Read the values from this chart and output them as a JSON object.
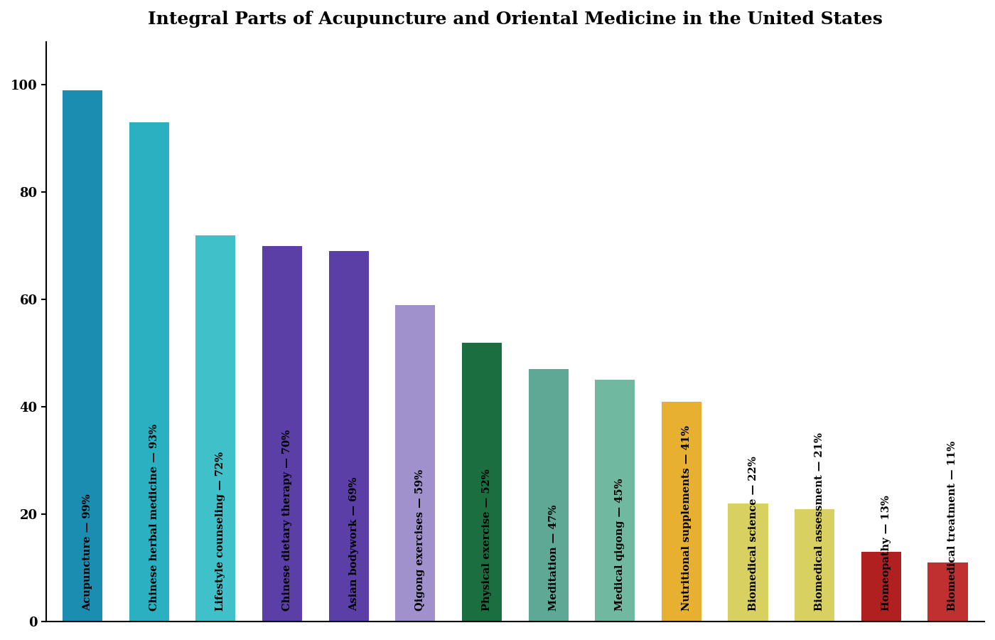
{
  "title": "Integral Parts of Acupuncture and Oriental Medicine in the United States",
  "categories": [
    "Acupuncture",
    "Chinese herbal medicine",
    "Lifestyle counseling",
    "Chinese dietary therapy",
    "Asian bodywork",
    "Qigong exercises",
    "Physical exercise",
    "Meditation",
    "Medical qigong",
    "Nutritional supplements",
    "Biomedical science",
    "Biomedical assessment",
    "Homeopathy",
    "Biomedical treatment"
  ],
  "values": [
    99,
    93,
    72,
    70,
    69,
    59,
    52,
    47,
    45,
    41,
    22,
    21,
    13,
    11
  ],
  "bar_colors": [
    "#1a8db0",
    "#2ab0c0",
    "#40c0c8",
    "#5b3ea6",
    "#5b3ea6",
    "#a090cc",
    "#1b6e40",
    "#60a896",
    "#70b8a0",
    "#e8b030",
    "#d8d060",
    "#d8d060",
    "#b02020",
    "#c03030"
  ],
  "label_texts": [
    "Acupuncture — 99%",
    "Chinese herbal medicine — 93%",
    "Lifestyle counseling — 72%",
    "Chinese dietary therapy — 70%",
    "Asian bodywork — 69%",
    "Qigong exercises — 59%",
    "Physical exercise — 52%",
    "Meditation — 47%",
    "Medical qigong — 45%",
    "Nutritional supplements — 41%",
    "Biomedical science — 22%",
    "Biomedical assessment — 21%",
    "Homeopathy — 13%",
    "Biomedical treatment — 11%"
  ],
  "ylabel": "",
  "ylim": [
    0,
    108
  ],
  "yticks": [
    0,
    20,
    40,
    60,
    80,
    100
  ],
  "background_color": "#ffffff",
  "plot_bg_color": "#ffffff",
  "title_fontsize": 18,
  "label_fontsize": 10.5
}
